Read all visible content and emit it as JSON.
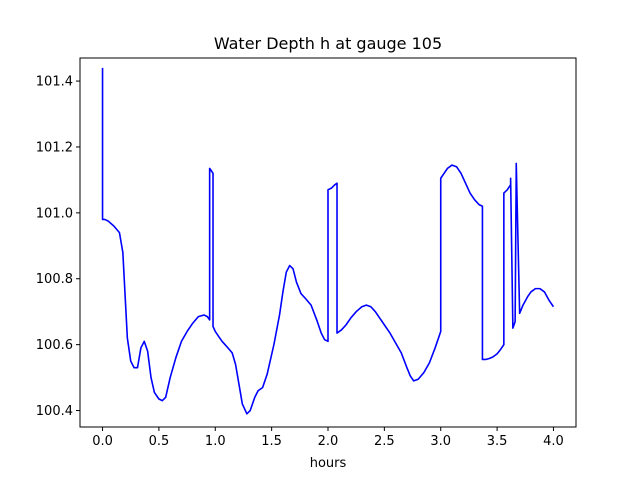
{
  "chart_data": {
    "type": "line",
    "title": "Water Depth h at gauge 105",
    "xlabel": "hours",
    "ylabel": "",
    "xlim": [
      -0.2,
      4.2
    ],
    "ylim": [
      100.35,
      101.47
    ],
    "xticks": [
      0.0,
      0.5,
      1.0,
      1.5,
      2.0,
      2.5,
      3.0,
      3.5,
      4.0
    ],
    "xtick_labels": [
      "0.0",
      "0.5",
      "1.0",
      "1.5",
      "2.0",
      "2.5",
      "3.0",
      "3.5",
      "4.0"
    ],
    "yticks": [
      100.4,
      100.6,
      100.8,
      101.0,
      101.2,
      101.4
    ],
    "ytick_labels": [
      "100.4",
      "100.6",
      "100.8",
      "101.0",
      "101.2",
      "101.4"
    ],
    "grid": false,
    "line_color": "#0000ff",
    "series": [
      {
        "name": "",
        "x": [
          0.0,
          0.0,
          0.0,
          0.02,
          0.05,
          0.1,
          0.15,
          0.18,
          0.2,
          0.22,
          0.25,
          0.28,
          0.31,
          0.34,
          0.37,
          0.4,
          0.43,
          0.46,
          0.5,
          0.53,
          0.56,
          0.6,
          0.65,
          0.7,
          0.75,
          0.8,
          0.85,
          0.9,
          0.93,
          0.95,
          0.95,
          0.98,
          0.98,
          1.0,
          1.03,
          1.06,
          1.1,
          1.15,
          1.18,
          1.21,
          1.24,
          1.28,
          1.31,
          1.35,
          1.38,
          1.42,
          1.46,
          1.52,
          1.57,
          1.6,
          1.63,
          1.66,
          1.69,
          1.72,
          1.76,
          1.8,
          1.85,
          1.9,
          1.94,
          1.97,
          2.0,
          2.0,
          2.03,
          2.06,
          2.08,
          2.08,
          2.12,
          2.16,
          2.2,
          2.25,
          2.3,
          2.34,
          2.38,
          2.42,
          2.46,
          2.5,
          2.55,
          2.6,
          2.65,
          2.7,
          2.73,
          2.76,
          2.8,
          2.85,
          2.9,
          2.95,
          3.0,
          3.0,
          3.03,
          3.06,
          3.1,
          3.14,
          3.18,
          3.22,
          3.26,
          3.3,
          3.34,
          3.37,
          3.37,
          3.4,
          3.43,
          3.46,
          3.5,
          3.53,
          3.56,
          3.56,
          3.59,
          3.62,
          3.62,
          3.64,
          3.65,
          3.66,
          3.67,
          3.67,
          3.7,
          3.73,
          3.77,
          3.8,
          3.84,
          3.88,
          3.92,
          3.96,
          4.0
        ],
        "y": [
          101.44,
          101.44,
          100.98,
          100.98,
          100.975,
          100.96,
          100.94,
          100.88,
          100.75,
          100.62,
          100.55,
          100.53,
          100.53,
          100.59,
          100.61,
          100.58,
          100.5,
          100.455,
          100.435,
          100.43,
          100.44,
          100.5,
          100.56,
          100.61,
          100.64,
          100.665,
          100.685,
          100.69,
          100.685,
          100.675,
          101.135,
          101.12,
          100.655,
          100.64,
          100.625,
          100.61,
          100.595,
          100.575,
          100.54,
          100.48,
          100.42,
          100.39,
          100.4,
          100.44,
          100.46,
          100.47,
          100.51,
          100.6,
          100.69,
          100.76,
          100.82,
          100.84,
          100.83,
          100.79,
          100.755,
          100.74,
          100.72,
          100.675,
          100.635,
          100.615,
          100.61,
          101.07,
          101.075,
          101.085,
          101.09,
          100.635,
          100.645,
          100.66,
          100.68,
          100.7,
          100.715,
          100.72,
          100.715,
          100.7,
          100.68,
          100.66,
          100.635,
          100.605,
          100.575,
          100.53,
          100.505,
          100.49,
          100.495,
          100.515,
          100.545,
          100.59,
          100.64,
          101.105,
          101.12,
          101.135,
          101.145,
          101.14,
          101.12,
          101.09,
          101.06,
          101.04,
          101.025,
          101.02,
          100.555,
          100.555,
          100.558,
          100.562,
          100.572,
          100.585,
          100.6,
          101.06,
          101.07,
          101.085,
          101.105,
          100.65,
          100.66,
          100.67,
          101.14,
          101.15,
          100.695,
          100.72,
          100.745,
          100.76,
          100.77,
          100.77,
          100.76,
          100.735,
          100.715
        ]
      }
    ]
  }
}
